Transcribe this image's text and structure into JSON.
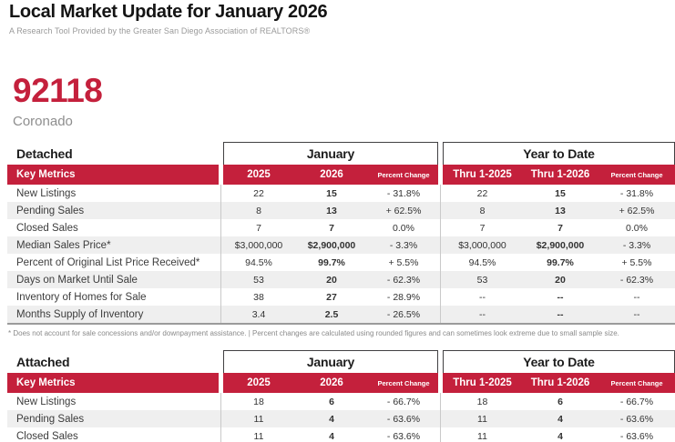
{
  "report": {
    "title": "Local Market Update for January 2026",
    "subtitle": "A Research Tool Provided by the Greater San Diego Association of REALTORS®"
  },
  "location": {
    "zip_code": "92118",
    "area_name": "Coronado"
  },
  "colors": {
    "accent_red": "#c4203c",
    "alt_row_gray": "#efefef"
  },
  "table_header": {
    "month_group": "January",
    "ytd_group": "Year to Date",
    "key_metrics": "Key Metrics",
    "columns": {
      "month": [
        "2025",
        "2026",
        "Percent Change"
      ],
      "ytd": [
        "Thru 1-2025",
        "Thru 1-2026",
        "Percent Change"
      ]
    }
  },
  "footnote": "* Does not account for sale concessions and/or downpayment assistance.  |  Percent changes are calculated using rounded figures and can sometimes look extreme due to small sample size.",
  "tables": [
    {
      "section": "Detached",
      "rows": [
        {
          "label": "New Listings",
          "month": [
            "22",
            "15",
            "- 31.8%"
          ],
          "ytd": [
            "22",
            "15",
            "- 31.8%"
          ]
        },
        {
          "label": "Pending Sales",
          "month": [
            "8",
            "13",
            "+ 62.5%"
          ],
          "ytd": [
            "8",
            "13",
            "+ 62.5%"
          ]
        },
        {
          "label": "Closed Sales",
          "month": [
            "7",
            "7",
            "0.0%"
          ],
          "ytd": [
            "7",
            "7",
            "0.0%"
          ]
        },
        {
          "label": "Median Sales Price*",
          "month": [
            "$3,000,000",
            "$2,900,000",
            "- 3.3%"
          ],
          "ytd": [
            "$3,000,000",
            "$2,900,000",
            "- 3.3%"
          ]
        },
        {
          "label": "Percent of Original List Price Received*",
          "month": [
            "94.5%",
            "99.7%",
            "+ 5.5%"
          ],
          "ytd": [
            "94.5%",
            "99.7%",
            "+ 5.5%"
          ]
        },
        {
          "label": "Days on Market Until Sale",
          "month": [
            "53",
            "20",
            "- 62.3%"
          ],
          "ytd": [
            "53",
            "20",
            "- 62.3%"
          ]
        },
        {
          "label": "Inventory of Homes for Sale",
          "month": [
            "38",
            "27",
            "- 28.9%"
          ],
          "ytd": [
            "--",
            "--",
            "--"
          ]
        },
        {
          "label": "Months Supply of Inventory",
          "month": [
            "3.4",
            "2.5",
            "- 26.5%"
          ],
          "ytd": [
            "--",
            "--",
            "--"
          ]
        }
      ]
    },
    {
      "section": "Attached",
      "rows": [
        {
          "label": "New Listings",
          "month": [
            "18",
            "6",
            "- 66.7%"
          ],
          "ytd": [
            "18",
            "6",
            "- 66.7%"
          ]
        },
        {
          "label": "Pending Sales",
          "month": [
            "11",
            "4",
            "- 63.6%"
          ],
          "ytd": [
            "11",
            "4",
            "- 63.6%"
          ]
        },
        {
          "label": "Closed Sales",
          "month": [
            "11",
            "4",
            "- 63.6%"
          ],
          "ytd": [
            "11",
            "4",
            "- 63.6%"
          ]
        }
      ]
    }
  ]
}
